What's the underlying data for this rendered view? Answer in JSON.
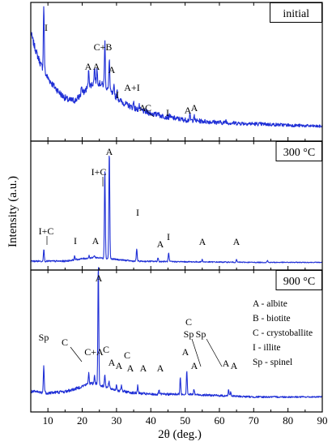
{
  "chart_data": {
    "type": "line",
    "xlabel": "2θ (deg.)",
    "ylabel": "Intensity (a.u.)",
    "xlim": [
      5,
      90
    ],
    "xticks": [
      10,
      20,
      30,
      40,
      50,
      60,
      70,
      80,
      90
    ],
    "panels": [
      {
        "name": "initial",
        "label": "initial",
        "background": [
          [
            5,
            0.82
          ],
          [
            6,
            0.72
          ],
          [
            7,
            0.64
          ],
          [
            8,
            0.57
          ],
          [
            9,
            0.52
          ],
          [
            10,
            0.47
          ],
          [
            12,
            0.4
          ],
          [
            14,
            0.34
          ],
          [
            16,
            0.3
          ],
          [
            18,
            0.3
          ],
          [
            20,
            0.35
          ],
          [
            22,
            0.41
          ],
          [
            24,
            0.44
          ],
          [
            26,
            0.42
          ],
          [
            28,
            0.37
          ],
          [
            30,
            0.32
          ],
          [
            32,
            0.28
          ],
          [
            35,
            0.24
          ],
          [
            40,
            0.2
          ],
          [
            45,
            0.17
          ],
          [
            50,
            0.15
          ],
          [
            55,
            0.14
          ],
          [
            60,
            0.13
          ],
          [
            70,
            0.12
          ],
          [
            80,
            0.11
          ],
          [
            90,
            0.1
          ]
        ],
        "peaks": [
          {
            "x": 8.8,
            "h": 0.5
          },
          {
            "x": 19.8,
            "h": 0.07
          },
          {
            "x": 21.9,
            "h": 0.13
          },
          {
            "x": 23.6,
            "h": 0.12
          },
          {
            "x": 24.3,
            "h": 0.1
          },
          {
            "x": 26.6,
            "h": 0.35
          },
          {
            "x": 27.9,
            "h": 0.25
          },
          {
            "x": 29.3,
            "h": 0.07
          },
          {
            "x": 30.2,
            "h": 0.05
          },
          {
            "x": 35.0,
            "h": 0.05
          },
          {
            "x": 36.6,
            "h": 0.03
          },
          {
            "x": 42.1,
            "h": 0.03
          },
          {
            "x": 45.5,
            "h": 0.02
          },
          {
            "x": 51.4,
            "h": 0.04
          },
          {
            "x": 52.6,
            "h": 0.04
          },
          {
            "x": 61.9,
            "h": 0.02
          }
        ],
        "annotations": [
          {
            "text": "I",
            "x": 8.8
          },
          {
            "text": "C+B",
            "x": 26.6
          },
          {
            "text": "A",
            "x": 22.4
          },
          {
            "text": "A",
            "x": 24.2
          },
          {
            "text": "A",
            "x": 28.3
          },
          {
            "text": "I",
            "x": 30.0
          },
          {
            "text": "A+I",
            "x": 35.5
          },
          {
            "text": "A",
            "x": 36.7
          },
          {
            "text": "C",
            "x": 38.8
          },
          {
            "text": "I",
            "x": 45.5
          },
          {
            "text": "A",
            "x": 50.8
          },
          {
            "text": "A",
            "x": 52.6
          }
        ]
      },
      {
        "name": "300C",
        "label": "300 °C",
        "background": [
          [
            5,
            0.06
          ],
          [
            15,
            0.06
          ],
          [
            20,
            0.08
          ],
          [
            24,
            0.09
          ],
          [
            28,
            0.08
          ],
          [
            35,
            0.06
          ],
          [
            50,
            0.055
          ],
          [
            70,
            0.05
          ],
          [
            90,
            0.05
          ]
        ],
        "peaks": [
          {
            "x": 8.8,
            "h": 0.1
          },
          {
            "x": 17.8,
            "h": 0.03
          },
          {
            "x": 22.0,
            "h": 0.02
          },
          {
            "x": 23.5,
            "h": 0.02
          },
          {
            "x": 26.6,
            "h": 0.74
          },
          {
            "x": 27.9,
            "h": 0.9
          },
          {
            "x": 35.9,
            "h": 0.1
          },
          {
            "x": 42.1,
            "h": 0.03
          },
          {
            "x": 45.2,
            "h": 0.07
          },
          {
            "x": 55.0,
            "h": 0.02
          },
          {
            "x": 65.0,
            "h": 0.02
          },
          {
            "x": 74.0,
            "h": 0.015
          }
        ],
        "annotations": [
          {
            "text": "I+C",
            "x": 8.8
          },
          {
            "text": "I",
            "x": 17.8
          },
          {
            "text": "A",
            "x": 23.5
          },
          {
            "text": "I+C",
            "x": 26.6
          },
          {
            "text": "A",
            "x": 27.9
          },
          {
            "text": "I",
            "x": 35.9
          },
          {
            "text": "A",
            "x": 43.2
          },
          {
            "text": "I",
            "x": 45.2
          },
          {
            "text": "A",
            "x": 55.0
          },
          {
            "text": "A",
            "x": 65.0
          }
        ]
      },
      {
        "name": "900C",
        "label": "900 °C",
        "background": [
          [
            5,
            0.14
          ],
          [
            10,
            0.13
          ],
          [
            15,
            0.14
          ],
          [
            18,
            0.16
          ],
          [
            22,
            0.2
          ],
          [
            24,
            0.2
          ],
          [
            26,
            0.18
          ],
          [
            30,
            0.15
          ],
          [
            35,
            0.13
          ],
          [
            40,
            0.12
          ],
          [
            50,
            0.12
          ],
          [
            60,
            0.11
          ],
          [
            70,
            0.1
          ],
          [
            80,
            0.1
          ],
          [
            90,
            0.1
          ]
        ],
        "peaks": [
          {
            "x": 8.8,
            "h": 0.2
          },
          {
            "x": 21.9,
            "h": 0.08
          },
          {
            "x": 23.6,
            "h": 0.06
          },
          {
            "x": 24.7,
            "h": 0.91
          },
          {
            "x": 26.6,
            "h": 0.1
          },
          {
            "x": 27.8,
            "h": 0.05
          },
          {
            "x": 30.0,
            "h": 0.04
          },
          {
            "x": 31.4,
            "h": 0.04
          },
          {
            "x": 36.2,
            "h": 0.06
          },
          {
            "x": 42.4,
            "h": 0.03
          },
          {
            "x": 48.6,
            "h": 0.12
          },
          {
            "x": 50.5,
            "h": 0.18
          },
          {
            "x": 52.6,
            "h": 0.04
          },
          {
            "x": 62.7,
            "h": 0.05
          },
          {
            "x": 63.3,
            "h": 0.03
          }
        ],
        "annotations": [
          {
            "text": "Sp",
            "x": 24.7
          },
          {
            "text": "C",
            "x": 8.8
          },
          {
            "text": "C+A",
            "x": 20.8
          },
          {
            "text": "A",
            "x": 23.6
          },
          {
            "text": "C",
            "x": 26.6
          },
          {
            "text": "A",
            "x": 28.2
          },
          {
            "text": "A",
            "x": 30.2
          },
          {
            "text": "A",
            "x": 32.4
          },
          {
            "text": "C",
            "x": 35.0
          },
          {
            "text": "A",
            "x": 37.2
          },
          {
            "text": "A",
            "x": 42.2
          },
          {
            "text": "C",
            "x": 48.4
          },
          {
            "text": "Sp",
            "x": 48.4
          },
          {
            "text": "A",
            "x": 50.5
          },
          {
            "text": "A",
            "x": 52.4
          },
          {
            "text": "Sp",
            "x": 55.6
          },
          {
            "text": "A",
            "x": 61.8
          },
          {
            "text": "A",
            "x": 63.6
          }
        ],
        "legend": [
          "A - albite",
          "B - biotite",
          "C - crystoballite",
          "I - illite",
          "Sp - spinel"
        ]
      }
    ],
    "colors": {
      "trace": "#1f2fd6",
      "frame": "#000000"
    },
    "grid": false
  }
}
